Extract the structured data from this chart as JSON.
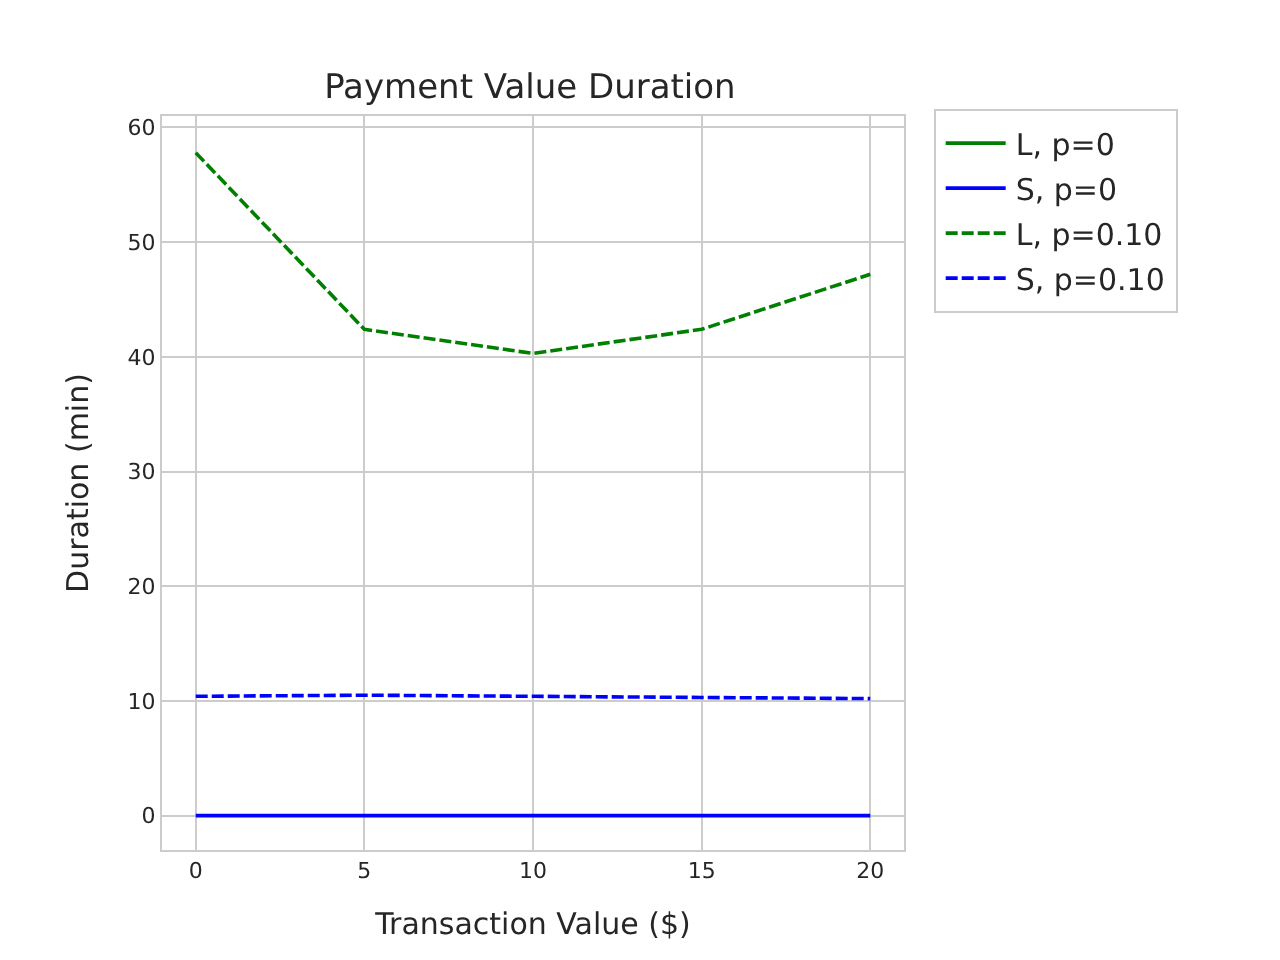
{
  "chart_data": {
    "type": "line",
    "title": "Payment Value Duration",
    "xlabel": "Transaction Value ($)",
    "ylabel": "Duration (min)",
    "x": [
      0,
      5,
      10,
      15,
      20
    ],
    "series": [
      {
        "name": "L, p=0",
        "color": "#008000",
        "values": [
          null,
          null,
          null,
          null,
          null
        ],
        "line_style": "solid"
      },
      {
        "name": "S, p=0",
        "color": "#0000ff",
        "values": [
          0,
          0,
          0,
          0,
          0
        ],
        "line_style": "solid"
      },
      {
        "name": "L, p=0.10",
        "color": "#008000",
        "values": [
          57.8,
          42.4,
          40.3,
          42.4,
          47.2
        ],
        "line_style": "dashed"
      },
      {
        "name": "S, p=0.10",
        "color": "#0000ff",
        "values": [
          10.4,
          10.5,
          10.4,
          10.3,
          10.2
        ],
        "line_style": "dashed"
      }
    ],
    "xlim": [
      -1,
      21
    ],
    "xticks": [
      0,
      5,
      10,
      15,
      20
    ],
    "ylim": [
      -3,
      61
    ],
    "yticks": [
      0,
      10,
      20,
      30,
      40,
      50,
      60
    ],
    "grid": true,
    "legend": "top right",
    "marker": "none"
  }
}
